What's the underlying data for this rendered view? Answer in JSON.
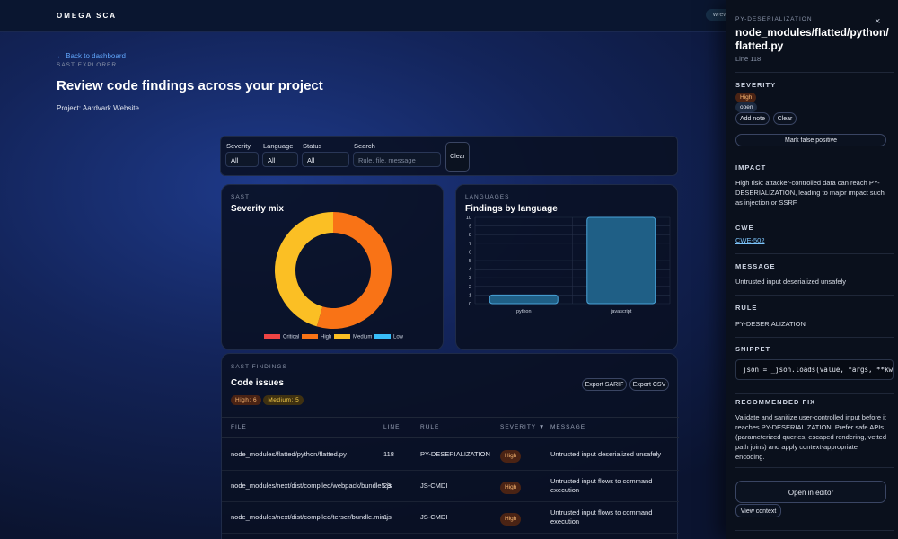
{
  "topbar": {
    "brand": "OMEGA SCA",
    "user": "wrew"
  },
  "header": {
    "back": "← Back to dashboard",
    "kicker": "SAST EXPLORER",
    "title": "Review code findings across your project",
    "project": "Project: Aardvark Website"
  },
  "filters": {
    "fields": [
      {
        "label": "Severity",
        "value": "All"
      },
      {
        "label": "Language",
        "value": "All"
      },
      {
        "label": "Status",
        "value": "All"
      }
    ],
    "search": {
      "label": "Search",
      "placeholder": "Rule, file, message"
    },
    "clear": "Clear"
  },
  "severity_chart": {
    "type": "pie",
    "kicker": "SAST",
    "title": "Severity mix",
    "categories": [
      "Critical",
      "High",
      "Medium",
      "Low"
    ],
    "values": [
      0,
      6,
      5,
      0
    ],
    "colors": [
      "#ef4444",
      "#f97316",
      "#fbbf24",
      "#38bdf8"
    ]
  },
  "language_chart": {
    "type": "bar",
    "kicker": "LANGUAGES",
    "title": "Findings by language",
    "categories": [
      "python",
      "javascript"
    ],
    "values": [
      1,
      10
    ],
    "color": "#1f5f86",
    "ylim": [
      0,
      10
    ],
    "yticks": [
      0,
      1,
      2,
      3,
      4,
      5,
      6,
      7,
      8,
      9,
      10
    ],
    "grid": true
  },
  "findings": {
    "kicker": "SAST FINDINGS",
    "title": "Code issues",
    "badges": [
      "High: 6",
      "Medium: 5"
    ],
    "actions": [
      "Export SARIF",
      "Export CSV"
    ],
    "columns": [
      "FILE",
      "LINE",
      "RULE",
      "SEVERITY ▼",
      "MESSAGE"
    ],
    "rows": [
      [
        "node_modules/flatted/python/flatted.py",
        118,
        "PY-DESERIALIZATION",
        "High",
        "Untrusted input deserialized unsafely"
      ],
      [
        "node_modules/next/dist/compiled/webpack/bundle5.js",
        29,
        "JS-CMDI",
        "High",
        "Untrusted input flows to command execution"
      ],
      [
        "node_modules/next/dist/compiled/terser/bundle.min.js",
        1,
        "JS-CMDI",
        "High",
        "Untrusted input flows to command execution"
      ]
    ]
  },
  "drawer": {
    "kicker": "PY-DESERIALIZATION",
    "title": "node_modules/flatted/python/flatted.py",
    "line": "Line 118",
    "close": "×",
    "severity": {
      "heading": "SEVERITY",
      "badge": "High",
      "status": "open",
      "add_note": "Add note",
      "clear": "Clear",
      "false_positive": "Mark false positive"
    },
    "impact": {
      "heading": "IMPACT",
      "text": "High risk: attacker-controlled data can reach PY-DESERIALIZATION, leading to major impact such as injection or SSRF."
    },
    "cwe": {
      "heading": "CWE",
      "link": "CWE-502"
    },
    "message": {
      "heading": "MESSAGE",
      "text": "Untrusted input deserialized unsafely"
    },
    "rule": {
      "heading": "RULE",
      "text": "PY-DESERIALIZATION"
    },
    "snippet": {
      "heading": "SNIPPET",
      "code": "json = _json.loads(value, *args, **kwargs)"
    },
    "fix": {
      "heading": "RECOMMENDED FIX",
      "text": "Validate and sanitize user-controlled input before it reaches PY-DESERIALIZATION. Prefer safe APIs (parameterized queries, escaped rendering, vetted path joins) and apply context-appropriate encoding."
    },
    "open_editor": "Open in editor",
    "view_context": "View context"
  }
}
